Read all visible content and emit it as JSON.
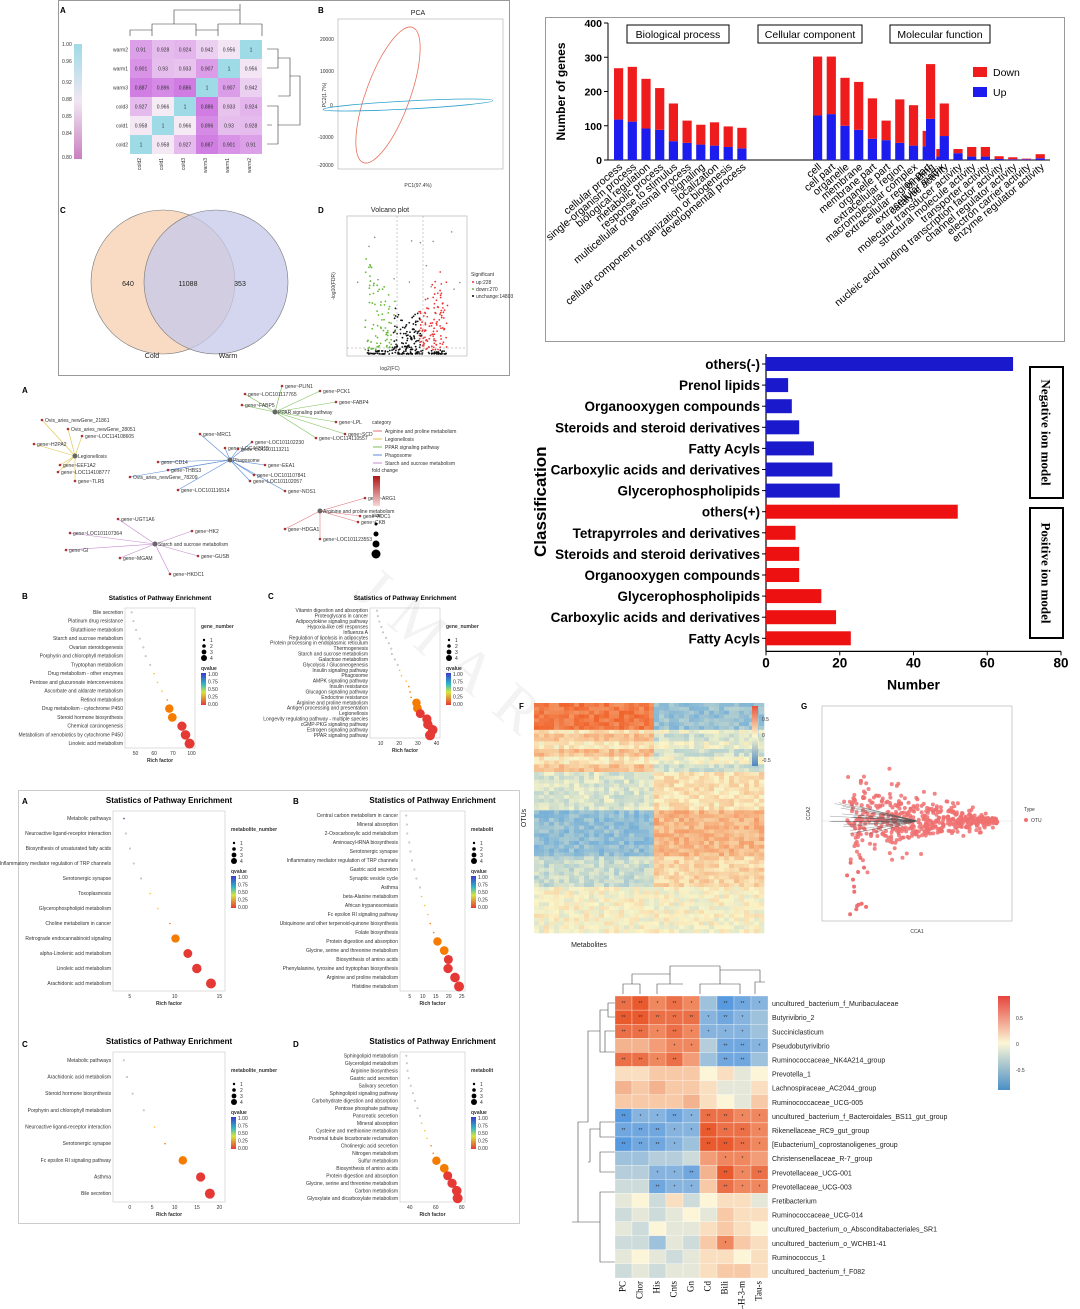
{
  "panels": {
    "A1": "A",
    "B1": "B",
    "C1": "C",
    "D1": "D",
    "A2": "A",
    "B2": "B",
    "C2": "C",
    "A3": "A",
    "B3": "B",
    "C3": "C",
    "D3": "D",
    "F": "F",
    "G": "G"
  },
  "corr": {
    "rows": [
      "warm2",
      "warm1",
      "warm3",
      "cold3",
      "cold1",
      "cold2"
    ],
    "cols": [
      "cold2",
      "cold1",
      "cold3",
      "warm3",
      "warm1",
      "warm2"
    ],
    "values": [
      [
        0.91,
        0.928,
        0.924,
        0.942,
        0.956,
        1
      ],
      [
        0.901,
        0.93,
        0.933,
        0.907,
        1,
        0.956
      ],
      [
        0.887,
        0.896,
        0.886,
        1,
        0.907,
        0.942
      ],
      [
        0.927,
        0.966,
        1,
        0.886,
        0.933,
        0.924
      ],
      [
        0.958,
        1,
        0.966,
        0.896,
        0.93,
        0.928
      ],
      [
        1,
        0.958,
        0.927,
        0.887,
        0.901,
        0.91
      ]
    ],
    "scale_ticks": [
      "1.00",
      "0.96",
      "0.92",
      "0.88",
      "0.85",
      "0.84",
      "0.80"
    ]
  },
  "pca": {
    "title": "PCA",
    "xlabel": "PC1(97.4%)",
    "ylabel": "PC2(1.7%)"
  },
  "venn": {
    "left_only": "640",
    "both": "11088",
    "right_only": "353",
    "left_label": "Cold",
    "right_label": "Warm"
  },
  "volcano": {
    "title": "Volcano plot",
    "xlabel": "log2(FC)",
    "ylabel": "-log10(FDR)",
    "legend_title": "Significant",
    "legend": [
      "up:228",
      "down:270",
      "unchange:14803"
    ]
  },
  "chart_data": [
    {
      "type": "bar",
      "ylabel": "Number of genes",
      "ylim": [
        0,
        400
      ],
      "yticks": [
        "0",
        "100",
        "200",
        "300",
        "400"
      ],
      "groups": [
        "Biological process",
        "Cellular component",
        "Molecular function"
      ],
      "legend": [
        "Down",
        "Up"
      ],
      "colors": {
        "Down": "#ee1c1c",
        "Up": "#1c1cee"
      },
      "categories": [
        "cellular process",
        "single-organism process",
        "biological regulation",
        "metabolic process",
        "response to stimulus",
        "multicellular organismal process",
        "signaling",
        "localization",
        "cellular component organization or biogenesis",
        "developmental process",
        "cell",
        "cell part",
        "organelle",
        "membrane",
        "membrane part",
        "organelle part",
        "extracellular region",
        "macromolecular complex",
        "extracellular region part",
        "extracellular matrix",
        "binding",
        "catalytic activity",
        "molecular transducer activity",
        "structural molecule activity",
        "transporter activity",
        "nucleic acid binding transcription factor activity",
        "channel regulator activity",
        "electron carrier activity",
        "enzyme regulator activity"
      ],
      "series": [
        {
          "name": "Up",
          "values": [
            118,
            112,
            92,
            88,
            55,
            50,
            45,
            42,
            38,
            34,
            130,
            134,
            100,
            88,
            62,
            58,
            50,
            42,
            40,
            10,
            120,
            70,
            20,
            10,
            10,
            3,
            2,
            2,
            5
          ]
        },
        {
          "name": "Down",
          "values": [
            150,
            160,
            145,
            122,
            110,
            65,
            58,
            68,
            60,
            60,
            172,
            168,
            140,
            140,
            118,
            57,
            127,
            118,
            45,
            22,
            160,
            95,
            12,
            28,
            28,
            8,
            6,
            2,
            12
          ]
        }
      ]
    },
    {
      "type": "bar",
      "orientation": "horizontal",
      "xlabel": "Number",
      "ylabel": "Classification",
      "xlim": [
        0,
        80
      ],
      "xticks": [
        "0",
        "20",
        "40",
        "60",
        "80"
      ],
      "categories": [
        "others(-)",
        "Prenol lipids",
        "Organooxygen compounds",
        "Steroids and steroid derivatives",
        "Fatty Acyls",
        "Carboxylic acids and derivatives",
        "Glycerophospholipids",
        "others(+)",
        "Tetrapyrroles and derivatives",
        "Steroids and steroid derivatives",
        "Organooxygen compounds",
        "Glycerophospholipids",
        "Carboxylic acids and derivatives",
        "Fatty Acyls"
      ],
      "values": [
        67,
        6,
        7,
        9,
        13,
        18,
        20,
        52,
        8,
        9,
        9,
        15,
        19,
        23
      ],
      "groups": [
        "Negative ion model",
        "Positive ion model"
      ],
      "colors": {
        "negative": "#1a1acc",
        "positive": "#ee1111"
      }
    },
    {
      "type": "heatmap",
      "ylabel": "OTUs",
      "xlabel": "Metabolites",
      "scale": [
        "0.5",
        "0",
        "-0.5"
      ]
    },
    {
      "type": "scatter",
      "xlabel": "CCA1",
      "ylabel": "CCA2",
      "legend_title": "Type",
      "legend": [
        "OTU"
      ]
    },
    {
      "type": "heatmap",
      "rows": [
        "uncultured_bacterium_f_Muribaculaceae",
        "Butyrivibrio_2",
        "Succiniclasticum",
        "Pseudobutyrivibrio",
        "Ruminococcaceae_NK4A214_group",
        "Prevotella_1",
        "Lachnospiraceae_AC2044_group",
        "Ruminococcaceae_UCG-005",
        "uncultured_bacterium_f_Bacteroidales_BS11_gut_group",
        "Rikenellaceae_RC9_gut_group",
        "[Eubacterium]_coprostanoligenes_group",
        "Christensenellaceae_R-7_group",
        "Prevotellaceae_UCG-001",
        "Prevotellaceae_UCG-003",
        "Fretibacterium",
        "Ruminococcaceae_UCG-014",
        "uncultured_bacterium_o_Absconditabacteriales_SR1",
        "uncultured_bacterium_o_WCHB1-41",
        "Ruminococcus_1",
        "uncultured_bacterium_f_F082"
      ],
      "cols": [
        "PC",
        "Chor",
        "His",
        "Cnts",
        "Gn",
        "Cd",
        "Bili",
        "4-H-3-m",
        "Tau-s"
      ],
      "scale": [
        "0.5",
        "0",
        "-0.5"
      ]
    }
  ],
  "network": {
    "genes": [
      "gene~PLIN1",
      "gene~LOC101117765",
      "gene~PCK1",
      "gene~FABP4",
      "gene~FABP5",
      "PPAR signaling pathway",
      "gene~LPL",
      "gene~SCD",
      "gene~LOC114110557",
      "Ovis_aries_newGene_21861",
      "Ovis_aries_newGene_28051",
      "gene~LOC114108605",
      "gene~H2PA2",
      "Legionellosis",
      "gene~EEF1A2",
      "gene~LOC114108777",
      "gene~TLR5",
      "gene~MRC1",
      "gene~LOC443315",
      "gene~CD14",
      "gene~THBS3",
      "Ovis_aries_newGene_78209",
      "gene~LOC101116514",
      "gene~LOC101102230",
      "gene~LOC101113211",
      "Phagosome",
      "gene~EEA1",
      "gene~LOC101107841",
      "gene~LOC101102057",
      "gene~NOS1",
      "Arginine and proline metabolism",
      "gene~ARG1",
      "gene~ADC1",
      "gene~CKB",
      "gene~HDGA1",
      "gene~LOC101123553",
      "gene~UGT1A6",
      "gene~LOC101107364",
      "Starch and sucrose metabolism",
      "gene~HK2",
      "gene~GI",
      "gene~MGAM",
      "gene~GUSB",
      "gene~HKDC1"
    ],
    "legend_title": "category",
    "categories": [
      "Arginine and proline metabolism",
      "Legionellosis",
      "PPAR signaling pathway",
      "Phagosome",
      "Starch and sucrose metabolism"
    ],
    "fold_title": "fold change",
    "size_title": "size"
  },
  "enrich": {
    "title": "Statistics of Pathway Enrichment",
    "rich": "Rich factor",
    "gene_number": "gene_number",
    "metabolite_number": "metabolite_number",
    "metabolit": "metabolit",
    "qvalue": "qvalue",
    "q_ticks": [
      "1.00",
      "0.75",
      "0.50",
      "0.25",
      "0.00"
    ]
  }
}
